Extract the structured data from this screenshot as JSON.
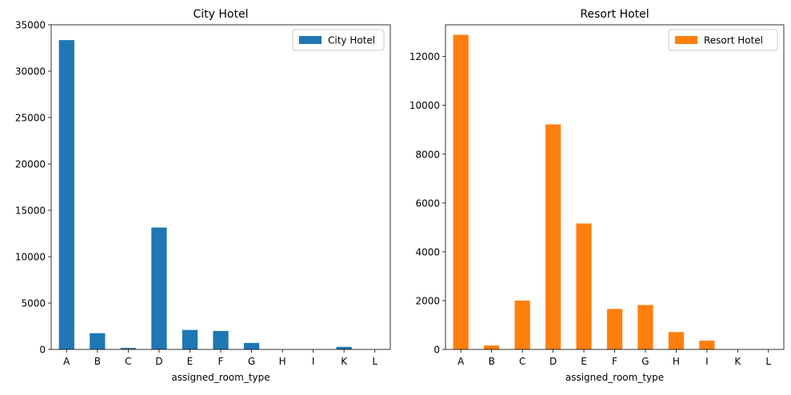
{
  "chart_data": [
    {
      "type": "bar",
      "title": "City Hotel",
      "xlabel": "assigned_room_type",
      "ylabel": "",
      "categories": [
        "A",
        "B",
        "C",
        "D",
        "E",
        "F",
        "G",
        "H",
        "I",
        "K",
        "L"
      ],
      "series": [
        {
          "name": "City Hotel",
          "color": "#1f77b4",
          "values": [
            33350,
            1750,
            160,
            13140,
            2100,
            1990,
            700,
            0,
            0,
            280,
            0
          ]
        }
      ],
      "ylim": [
        0,
        35000
      ],
      "yticks": [
        "0",
        "5000",
        "10000",
        "15000",
        "20000",
        "25000",
        "30000",
        "35000"
      ],
      "legend_position": "top-right",
      "grid": false
    },
    {
      "type": "bar",
      "title": "Resort Hotel",
      "xlabel": "assigned_room_type",
      "ylabel": "",
      "categories": [
        "A",
        "B",
        "C",
        "D",
        "E",
        "F",
        "G",
        "H",
        "I",
        "K",
        "L"
      ],
      "series": [
        {
          "name": "Resort Hotel",
          "color": "#ff7f0e",
          "values": [
            12890,
            160,
            2000,
            9220,
            5160,
            1660,
            1820,
            710,
            360,
            0,
            0
          ]
        }
      ],
      "ylim": [
        0,
        13300
      ],
      "yticks": [
        "0",
        "2000",
        "4000",
        "6000",
        "8000",
        "10000",
        "12000"
      ],
      "legend_position": "top-right",
      "grid": false
    }
  ]
}
